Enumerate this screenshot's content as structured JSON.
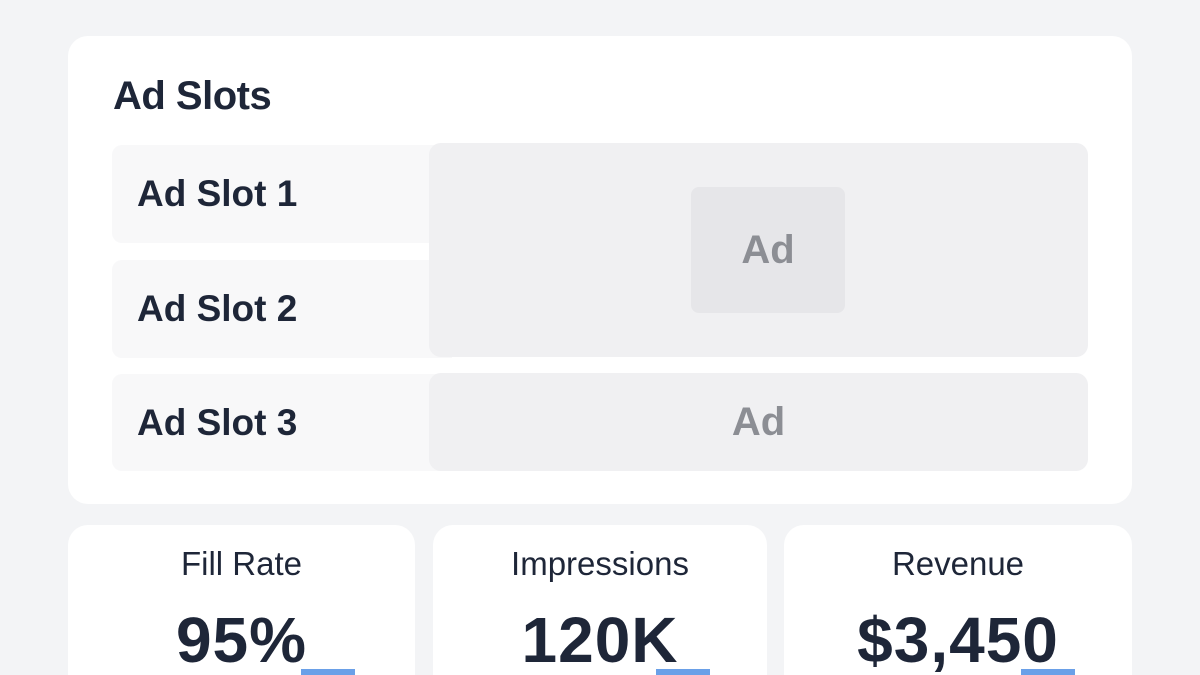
{
  "slots_panel": {
    "title": "Ad Slots",
    "slots": [
      {
        "label": "Ad Slot 1"
      },
      {
        "label": "Ad Slot 2"
      },
      {
        "label": "Ad Slot 3"
      }
    ],
    "ad_placeholders": [
      "Ad",
      "Ad"
    ]
  },
  "metrics": [
    {
      "label": "Fill Rate",
      "value": "95%"
    },
    {
      "label": "Impressions",
      "value": "120K"
    },
    {
      "label": "Revenue",
      "value": "$3,450"
    }
  ],
  "colors": {
    "background": "#f3f4f6",
    "card": "#ffffff",
    "text": "#1e2638",
    "ad_area": "#f0f0f2",
    "ad_text": "#8c8e94",
    "accent_bar": "#6aa0e8"
  }
}
